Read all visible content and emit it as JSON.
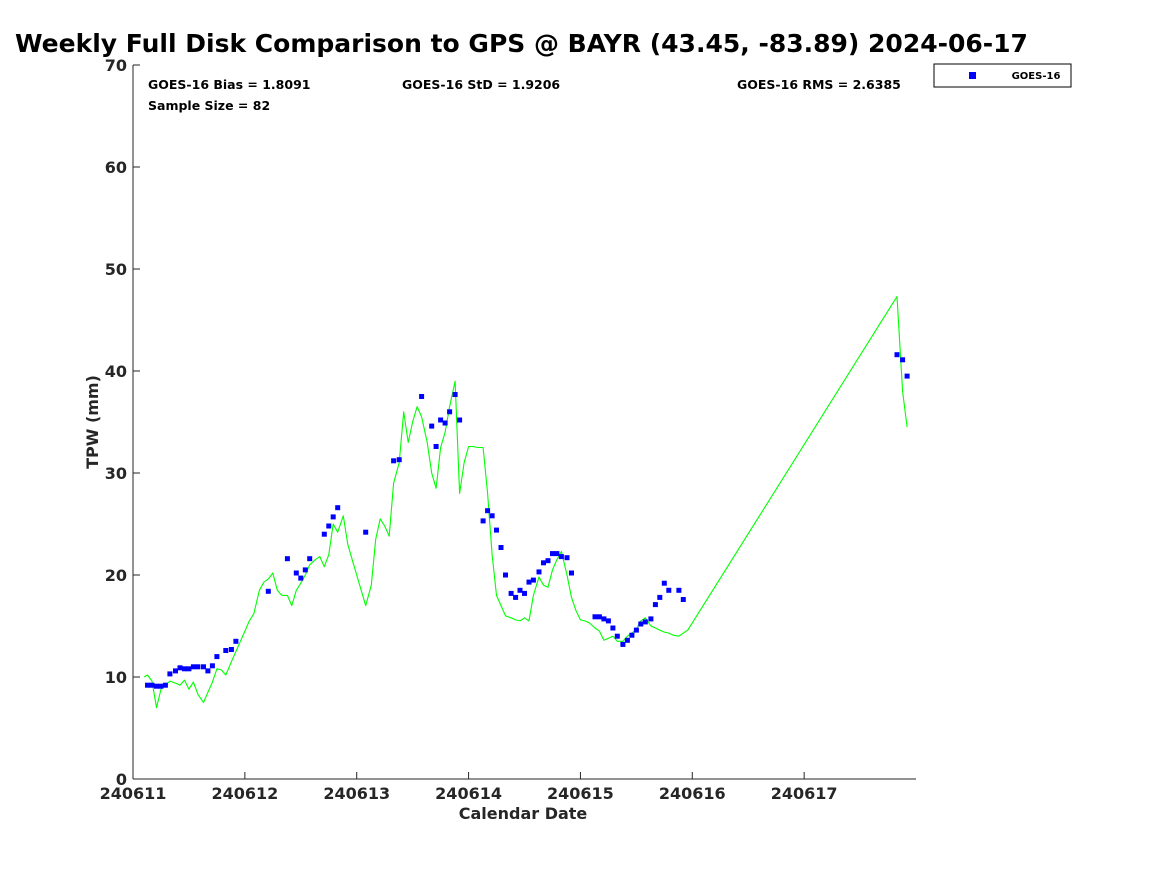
{
  "chart_data": {
    "type": "scatter",
    "title": "Weekly Full Disk Comparison to GPS @ BAYR (43.45, -83.89) 2024-06-17",
    "xlabel": "Calendar Date",
    "ylabel": "TPW (mm)",
    "xlim": [
      240611,
      240618
    ],
    "ylim": [
      0,
      70
    ],
    "x_ticks": [
      240611,
      240612,
      240613,
      240614,
      240615,
      240616,
      240617
    ],
    "x_tick_labels": [
      "240611",
      "240612",
      "240613",
      "240614",
      "240615",
      "240616",
      "240617"
    ],
    "y_ticks": [
      0,
      10,
      20,
      30,
      40,
      50,
      60,
      70
    ],
    "y_tick_labels": [
      "0",
      "10",
      "20",
      "30",
      "40",
      "50",
      "60",
      "70"
    ],
    "grid": false,
    "legend_position": "top-right",
    "stats": {
      "bias": "GOES-16 Bias = 1.8091",
      "std": "GOES-16 StD = 1.9206",
      "rms": "GOES-16 RMS = 2.6385",
      "sample": "Sample Size = 82"
    },
    "series": [
      {
        "name": "GOES-16",
        "kind": "scatter",
        "color": "#0000ff",
        "x": [
          240611.13,
          240611.17,
          240611.21,
          240611.25,
          240611.29,
          240611.33,
          240611.38,
          240611.42,
          240611.46,
          240611.5,
          240611.54,
          240611.58,
          240611.63,
          240611.67,
          240611.71,
          240611.75,
          240611.83,
          240611.88,
          240611.92,
          240612.21,
          240612.38,
          240612.46,
          240612.5,
          240612.54,
          240612.58,
          240612.71,
          240612.75,
          240612.79,
          240612.83,
          240613.08,
          240613.33,
          240613.38,
          240613.58,
          240613.67,
          240613.71,
          240613.75,
          240613.79,
          240613.83,
          240613.88,
          240613.92,
          240614.13,
          240614.17,
          240614.21,
          240614.25,
          240614.29,
          240614.33,
          240614.38,
          240614.42,
          240614.46,
          240614.5,
          240614.54,
          240614.58,
          240614.63,
          240614.67,
          240614.71,
          240614.75,
          240614.79,
          240614.83,
          240614.88,
          240614.92,
          240615.13,
          240615.17,
          240615.21,
          240615.25,
          240615.29,
          240615.33,
          240615.38,
          240615.42,
          240615.46,
          240615.5,
          240615.54,
          240615.58,
          240615.63,
          240615.67,
          240615.71,
          240615.75,
          240615.79,
          240615.88,
          240615.92,
          240617.83,
          240617.88,
          240617.92
        ],
        "y": [
          9.2,
          9.2,
          9.1,
          9.1,
          9.2,
          10.3,
          10.6,
          10.9,
          10.8,
          10.8,
          11.0,
          11.0,
          11.0,
          10.6,
          11.1,
          12.0,
          12.6,
          12.7,
          13.5,
          18.4,
          21.6,
          20.2,
          19.7,
          20.5,
          21.6,
          24.0,
          24.8,
          25.7,
          26.6,
          24.2,
          31.2,
          31.3,
          37.5,
          34.6,
          32.6,
          35.2,
          34.9,
          36.0,
          37.7,
          35.2,
          25.3,
          26.3,
          25.8,
          24.4,
          22.7,
          20.0,
          18.2,
          17.8,
          18.5,
          18.2,
          19.3,
          19.5,
          20.3,
          21.2,
          21.4,
          22.1,
          22.1,
          21.8,
          21.7,
          20.2,
          15.9,
          15.9,
          15.7,
          15.5,
          14.8,
          14.0,
          13.2,
          13.6,
          14.1,
          14.6,
          15.2,
          15.4,
          15.7,
          17.1,
          17.8,
          19.2,
          18.5,
          18.5,
          17.6,
          41.6,
          41.1,
          39.5
        ]
      },
      {
        "name": "",
        "kind": "line",
        "color": "#00ff00",
        "x": [
          240611.1,
          240611.13,
          240611.17,
          240611.21,
          240611.25,
          240611.29,
          240611.33,
          240611.38,
          240611.42,
          240611.46,
          240611.5,
          240611.54,
          240611.58,
          240611.63,
          240611.67,
          240611.71,
          240611.75,
          240611.79,
          240611.83,
          240611.88,
          240611.92,
          240611.96,
          240612.0,
          240612.04,
          240612.08,
          240612.13,
          240612.17,
          240612.21,
          240612.25,
          240612.29,
          240612.33,
          240612.38,
          240612.42,
          240612.46,
          240612.5,
          240612.54,
          240612.58,
          240612.63,
          240612.67,
          240612.71,
          240612.75,
          240612.79,
          240612.83,
          240612.88,
          240612.92,
          240612.96,
          240613.0,
          240613.04,
          240613.08,
          240613.13,
          240613.17,
          240613.21,
          240613.25,
          240613.29,
          240613.33,
          240613.38,
          240613.42,
          240613.46,
          240613.5,
          240613.54,
          240613.58,
          240613.63,
          240613.67,
          240613.71,
          240613.75,
          240613.79,
          240613.83,
          240613.88,
          240613.92,
          240613.96,
          240614.0,
          240614.04,
          240614.08,
          240614.13,
          240614.17,
          240614.21,
          240614.25,
          240614.29,
          240614.33,
          240614.38,
          240614.42,
          240614.46,
          240614.5,
          240614.54,
          240614.58,
          240614.63,
          240614.67,
          240614.71,
          240614.75,
          240614.79,
          240614.83,
          240614.88,
          240614.92,
          240614.96,
          240615.0,
          240615.04,
          240615.08,
          240615.13,
          240615.17,
          240615.21,
          240615.25,
          240615.29,
          240615.33,
          240615.38,
          240615.42,
          240615.46,
          240615.5,
          240615.54,
          240615.58,
          240615.63,
          240615.67,
          240615.71,
          240615.75,
          240615.79,
          240615.83,
          240615.88,
          240615.92,
          240615.96,
          240617.79,
          240617.83,
          240617.88,
          240617.92
        ],
        "y": [
          10.0,
          10.2,
          9.6,
          7.0,
          8.8,
          9.2,
          9.6,
          9.4,
          9.2,
          9.7,
          8.8,
          9.5,
          8.3,
          7.5,
          8.5,
          9.5,
          10.8,
          10.7,
          10.2,
          11.5,
          12.5,
          13.5,
          14.5,
          15.5,
          16.2,
          18.5,
          19.3,
          19.6,
          20.2,
          18.5,
          18.0,
          18.0,
          17.0,
          18.5,
          19.2,
          20.0,
          21.0,
          21.5,
          21.8,
          20.8,
          22.0,
          25.0,
          24.2,
          25.8,
          23.0,
          21.5,
          20.0,
          18.5,
          17.0,
          19.0,
          23.5,
          25.5,
          24.8,
          23.8,
          29.0,
          31.0,
          36.0,
          33.0,
          35.0,
          36.5,
          35.5,
          33.0,
          30.0,
          28.5,
          32.5,
          34.0,
          36.5,
          39.0,
          28.0,
          31.0,
          32.6,
          32.6,
          32.5,
          32.5,
          28.0,
          22.0,
          18.0,
          17.0,
          16.0,
          15.8,
          15.6,
          15.5,
          15.8,
          15.5,
          18.0,
          19.8,
          19.0,
          18.8,
          20.5,
          21.5,
          22.3,
          20.0,
          17.8,
          16.5,
          15.6,
          15.5,
          15.3,
          14.8,
          14.5,
          13.6,
          13.8,
          14.0,
          13.5,
          13.5,
          14.0,
          14.3,
          14.7,
          15.5,
          15.8,
          15.0,
          14.8,
          14.6,
          14.4,
          14.3,
          14.1,
          14.0,
          14.3,
          14.6,
          46.6,
          47.3,
          38.0,
          34.5
        ]
      }
    ]
  }
}
